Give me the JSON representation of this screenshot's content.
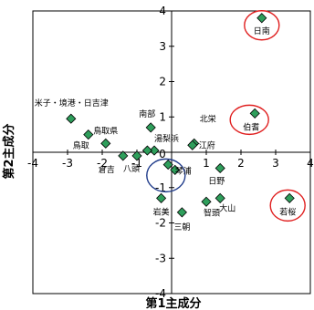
{
  "chart_data": {
    "type": "scatter",
    "title": "",
    "xlabel": "第1主成分",
    "ylabel": "第2主成分",
    "xlim": [
      -4,
      4
    ],
    "ylim": [
      -4,
      4
    ],
    "xticks": [
      "-4",
      "-3",
      "-2",
      "-1",
      "0",
      "1",
      "2",
      "3",
      "4"
    ],
    "yticks": [
      "-4",
      "-3",
      "-2",
      "-1",
      "0",
      "1",
      "2",
      "3",
      "4"
    ],
    "grid": false,
    "marker_color": "#2e9e5b",
    "highlight_color": "#e02020",
    "center_highlight_color": "#1e3a8a",
    "points": [
      {
        "label": "日南",
        "x": 2.6,
        "y": 3.8
      },
      {
        "label": "伯耆",
        "x": 2.4,
        "y": 1.1
      },
      {
        "label": "若桜",
        "x": 3.4,
        "y": -1.3
      },
      {
        "label": "米子・境港・日吉津",
        "x": -2.9,
        "y": 0.95
      },
      {
        "label": "鳥取",
        "x": -2.4,
        "y": 0.5
      },
      {
        "label": "鳥取県",
        "x": -1.9,
        "y": 0.25
      },
      {
        "label": "南部",
        "x": -0.6,
        "y": 0.7
      },
      {
        "label": "湯梨浜",
        "x": -0.5,
        "y": 0.05
      },
      {
        "label": "北栄",
        "x": 0.65,
        "y": 0.25
      },
      {
        "label": "江府",
        "x": 0.6,
        "y": 0.2
      },
      {
        "label": "倉吉",
        "x": -1.4,
        "y": -0.1
      },
      {
        "label": "八頭",
        "x": -1.0,
        "y": -0.1
      },
      {
        "label": "",
        "x": -0.7,
        "y": 0.05
      },
      {
        "label": "琴浦",
        "x": 0.1,
        "y": -0.5
      },
      {
        "label": "",
        "x": -0.1,
        "y": -0.35
      },
      {
        "label": "日野",
        "x": 1.4,
        "y": -0.45
      },
      {
        "label": "岩美",
        "x": -0.3,
        "y": -1.3
      },
      {
        "label": "智頭",
        "x": 1.0,
        "y": -1.4
      },
      {
        "label": "大山",
        "x": 1.4,
        "y": -1.3
      },
      {
        "label": "三朝",
        "x": 0.3,
        "y": -1.7
      }
    ],
    "highlights": [
      {
        "label": "日南",
        "color": "#e02020"
      },
      {
        "label": "伯耆",
        "color": "#e02020"
      },
      {
        "label": "若桜",
        "color": "#e02020"
      },
      {
        "label": "琴浦",
        "color": "#1e3a8a"
      }
    ]
  }
}
